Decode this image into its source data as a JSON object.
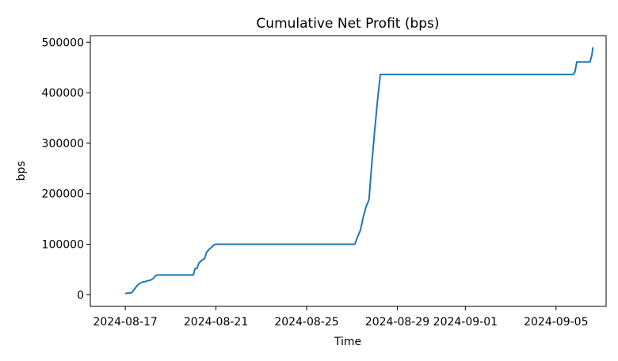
{
  "chart_data": {
    "type": "line",
    "title": "Cumulative Net Profit (bps)",
    "xlabel": "Time",
    "ylabel": "bps",
    "xlim": [
      "2024-08-15T11:00",
      "2024-09-07T05:00"
    ],
    "ylim": [
      -23000,
      513000
    ],
    "grid": false,
    "x_ticks": [
      "2024-08-17",
      "2024-08-21",
      "2024-08-25",
      "2024-08-29",
      "2024-09-01",
      "2024-09-05"
    ],
    "y_ticks": [
      0,
      100000,
      200000,
      300000,
      400000,
      500000
    ],
    "y_tick_labels": [
      "0",
      "100000",
      "200000",
      "300000",
      "400000",
      "500000"
    ],
    "series": [
      {
        "color": "#1f77b4",
        "x": [
          "2024-08-17T00:00",
          "2024-08-17T03:00",
          "2024-08-17T06:00",
          "2024-08-17T09:00",
          "2024-08-17T12:00",
          "2024-08-17T15:00",
          "2024-08-17T18:00",
          "2024-08-17T21:00",
          "2024-08-18T00:00",
          "2024-08-18T03:00",
          "2024-08-18T06:00",
          "2024-08-18T08:00",
          "2024-08-18T10:00",
          "2024-08-20T00:00",
          "2024-08-20T02:00",
          "2024-08-20T04:00",
          "2024-08-20T06:00",
          "2024-08-20T09:00",
          "2024-08-20T12:00",
          "2024-08-20T14:00",
          "2024-08-20T16:00",
          "2024-08-20T18:00",
          "2024-08-20T20:00",
          "2024-08-20T22:00",
          "2024-08-21T00:00",
          "2024-08-27T03:00",
          "2024-08-27T06:00",
          "2024-08-27T09:00",
          "2024-08-27T12:00",
          "2024-08-27T15:00",
          "2024-08-27T18:00",
          "2024-08-27T21:00",
          "2024-08-28T00:00",
          "2024-08-28T03:00",
          "2024-08-28T06:00",
          "2024-08-28T09:00",
          "2024-08-28T12:00",
          "2024-09-05T18:00",
          "2024-09-05T20:00",
          "2024-09-05T22:00",
          "2024-09-06T12:00",
          "2024-09-06T14:00",
          "2024-09-06T15:00"
        ],
        "y": [
          2000,
          4000,
          3000,
          9000,
          17000,
          22000,
          25000,
          26000,
          28000,
          29000,
          33000,
          38000,
          39000,
          39000,
          52000,
          52000,
          63000,
          68000,
          72000,
          84000,
          88000,
          92000,
          95000,
          99000,
          100000,
          100000,
          115000,
          128000,
          155000,
          175000,
          188000,
          260000,
          325000,
          385000,
          436000,
          436000,
          436000,
          436000,
          441000,
          461000,
          461000,
          475000,
          490000
        ]
      }
    ]
  }
}
